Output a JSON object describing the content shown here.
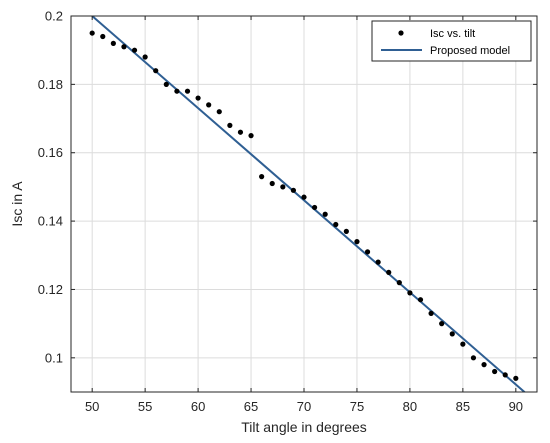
{
  "chart_data": {
    "type": "scatter",
    "xlabel": "Tilt angle in degrees",
    "ylabel": "Isc in A",
    "xlim": [
      48,
      92
    ],
    "ylim": [
      0.09,
      0.2
    ],
    "xticks": [
      "50",
      "55",
      "60",
      "65",
      "70",
      "75",
      "80",
      "85",
      "90"
    ],
    "yticks": [
      "0.1",
      "0.12",
      "0.14",
      "0.16",
      "0.18",
      "0.2"
    ],
    "grid": true,
    "legend_position": "top-right",
    "series": [
      {
        "name": "Isc vs. tilt",
        "style": "markers",
        "color": "#000000",
        "points": [
          [
            50,
            0.195
          ],
          [
            51,
            0.194
          ],
          [
            52,
            0.192
          ],
          [
            53,
            0.191
          ],
          [
            54,
            0.19
          ],
          [
            55,
            0.188
          ],
          [
            56,
            0.184
          ],
          [
            57,
            0.18
          ],
          [
            58,
            0.178
          ],
          [
            59,
            0.178
          ],
          [
            60,
            0.176
          ],
          [
            61,
            0.174
          ],
          [
            62,
            0.172
          ],
          [
            63,
            0.168
          ],
          [
            64,
            0.166
          ],
          [
            65,
            0.165
          ],
          [
            66,
            0.153
          ],
          [
            67,
            0.151
          ],
          [
            68,
            0.15
          ],
          [
            69,
            0.149
          ],
          [
            70,
            0.147
          ],
          [
            71,
            0.144
          ],
          [
            72,
            0.142
          ],
          [
            73,
            0.139
          ],
          [
            74,
            0.137
          ],
          [
            75,
            0.134
          ],
          [
            76,
            0.131
          ],
          [
            77,
            0.128
          ],
          [
            78,
            0.125
          ],
          [
            79,
            0.122
          ],
          [
            80,
            0.119
          ],
          [
            81,
            0.117
          ],
          [
            82,
            0.113
          ],
          [
            83,
            0.11
          ],
          [
            84,
            0.107
          ],
          [
            85,
            0.104
          ],
          [
            86,
            0.1
          ],
          [
            87,
            0.098
          ],
          [
            88,
            0.096
          ],
          [
            89,
            0.095
          ],
          [
            90,
            0.094
          ]
        ]
      },
      {
        "name": "Proposed model",
        "style": "line",
        "color": "#2f5f93",
        "points": [
          [
            50,
            0.2
          ],
          [
            91,
            0.0895
          ]
        ]
      }
    ]
  }
}
